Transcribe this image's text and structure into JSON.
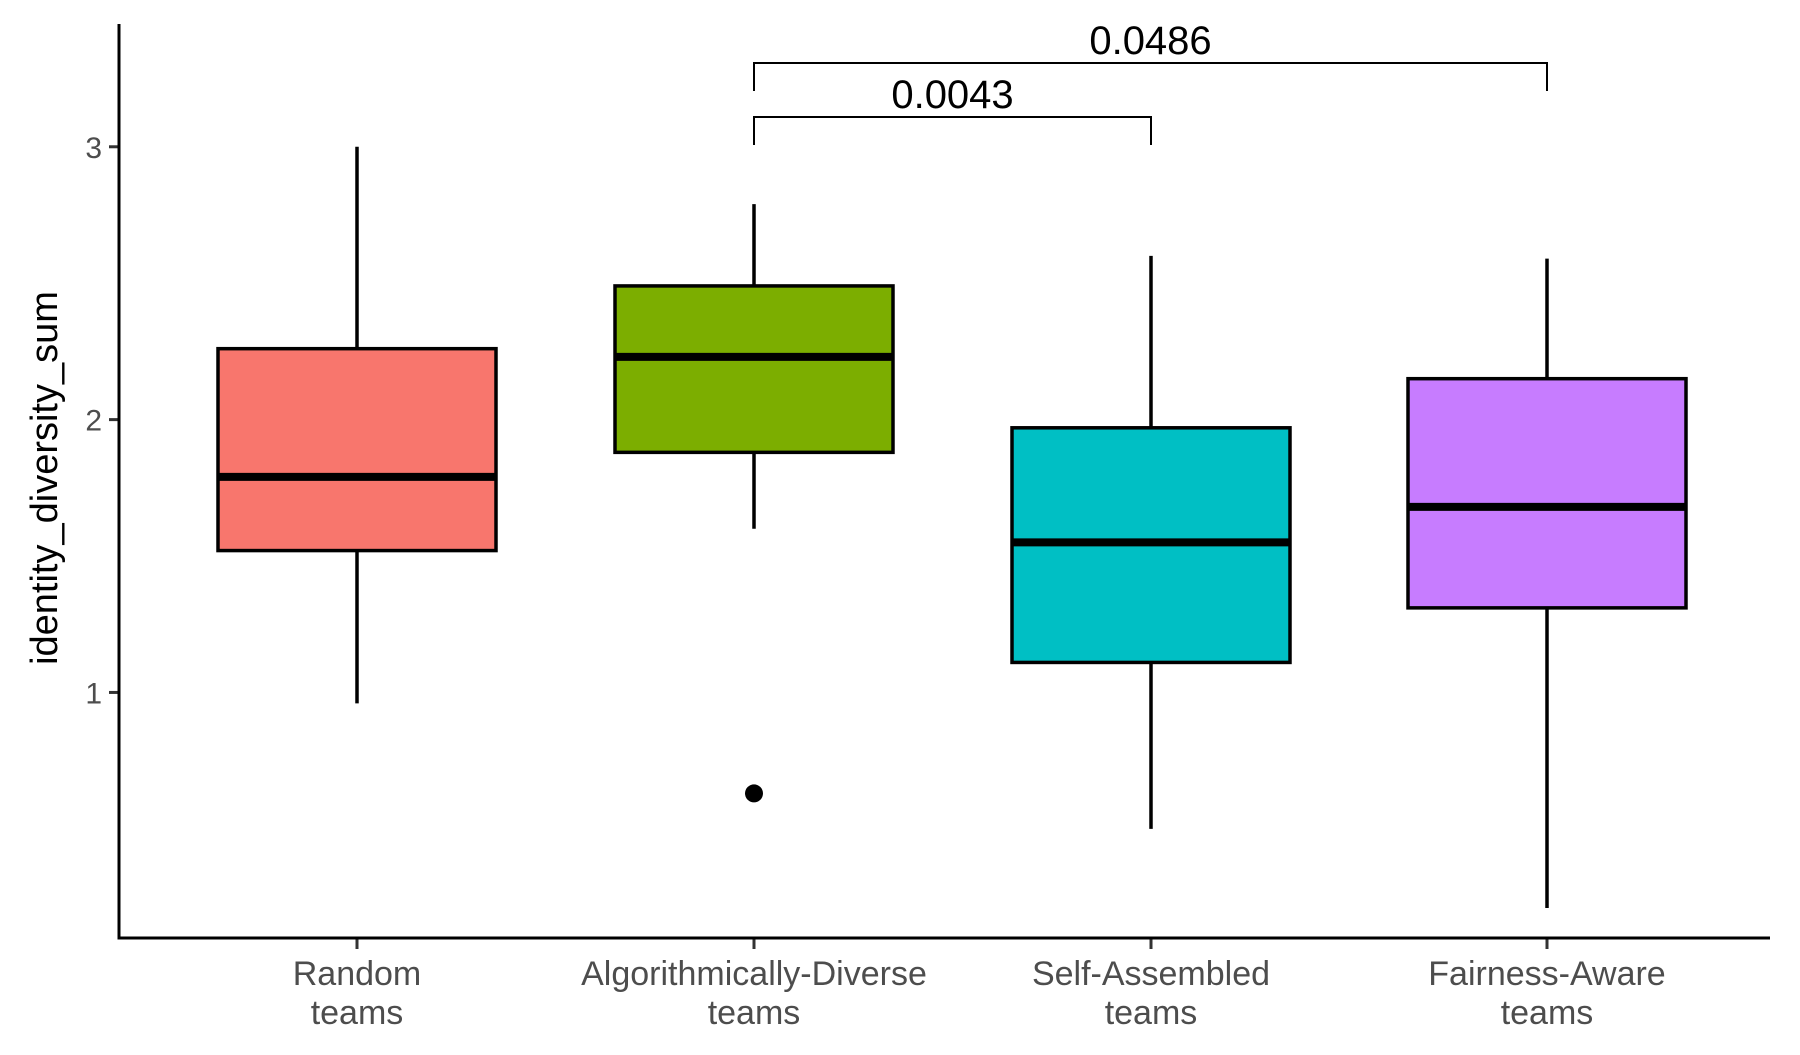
{
  "chart_data": {
    "type": "box",
    "title": "",
    "xlabel": "",
    "ylabel": "identity_diversity_sum",
    "ylim": [
      0.1,
      3.45
    ],
    "y_ticks": [
      1,
      2,
      3
    ],
    "grid": false,
    "legend": "none",
    "categories": [
      {
        "line1": "Random",
        "line2": "teams"
      },
      {
        "line1": "Algorithmically-Diverse",
        "line2": "teams"
      },
      {
        "line1": "Self-Assembled",
        "line2": "teams"
      },
      {
        "line1": "Fairness-Aware",
        "line2": "teams"
      }
    ],
    "boxes": [
      {
        "whisker_low": 0.96,
        "q1": 1.52,
        "median": 1.79,
        "q3": 2.26,
        "whisker_high": 3.0,
        "outliers": [],
        "color": "#F8766D"
      },
      {
        "whisker_low": 1.6,
        "q1": 1.88,
        "median": 2.23,
        "q3": 2.49,
        "whisker_high": 2.79,
        "outliers": [
          0.63
        ],
        "color": "#7CAE00"
      },
      {
        "whisker_low": 0.5,
        "q1": 1.11,
        "median": 1.55,
        "q3": 1.97,
        "whisker_high": 2.6,
        "outliers": [],
        "color": "#00BFC4"
      },
      {
        "whisker_low": 0.21,
        "q1": 1.31,
        "median": 1.68,
        "q3": 2.15,
        "whisker_high": 2.59,
        "outliers": [],
        "color": "#C77CFF"
      }
    ],
    "comparisons": [
      {
        "from": 1,
        "to": 2,
        "label": "0.0043"
      },
      {
        "from": 1,
        "to": 3,
        "label": "0.0486"
      }
    ]
  }
}
